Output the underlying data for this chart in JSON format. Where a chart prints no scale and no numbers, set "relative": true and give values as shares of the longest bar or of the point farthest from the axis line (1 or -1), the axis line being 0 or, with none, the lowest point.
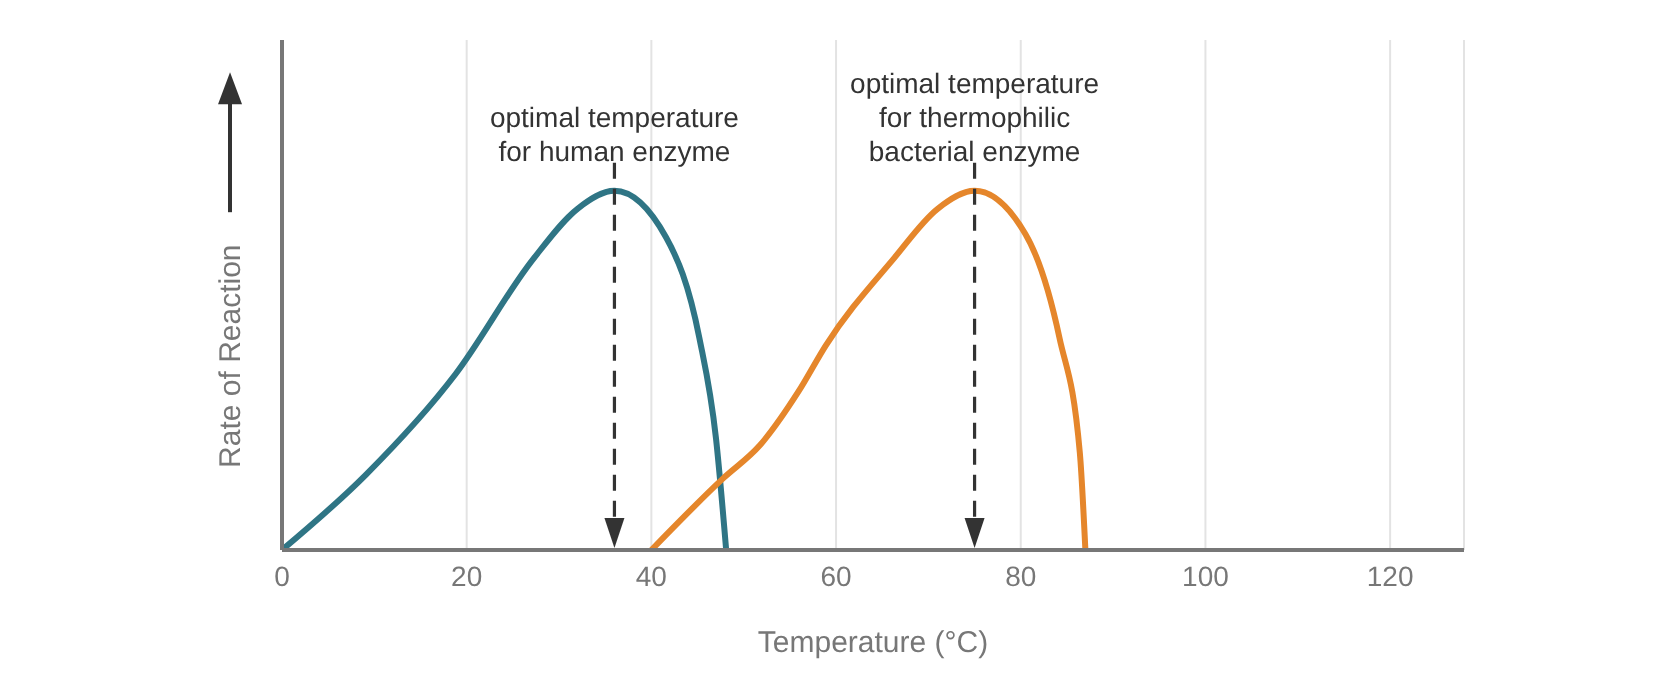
{
  "chart_data": {
    "type": "line",
    "xlabel": "Temperature (°C)",
    "ylabel": "Rate of Reaction",
    "relative": true,
    "xlim": [
      0,
      128
    ],
    "xticks": [
      0,
      20,
      40,
      60,
      80,
      100,
      120
    ],
    "grid": "x",
    "marker": "none",
    "line_style": "solid",
    "series": [
      {
        "color": "#2f7585",
        "x": [
          0,
          9.1,
          18.8,
          27.2,
          32,
          36,
          41.6,
          45.2,
          47,
          48.1
        ],
        "values": [
          0,
          0.21,
          0.49,
          0.81,
          0.95,
          1,
          0.87,
          0.59,
          0.31,
          0
        ]
      },
      {
        "color": "#e5862b",
        "x": [
          40,
          47.8,
          51.7,
          55.9,
          58.9,
          66.2,
          71,
          75,
          80.5,
          84.2,
          86.4,
          87
        ],
        "values": [
          0,
          0.2,
          0.29,
          0.44,
          0.57,
          0.81,
          0.95,
          1,
          0.88,
          0.59,
          0.27,
          0
        ]
      }
    ],
    "ref_lines": [
      {
        "axis": "x",
        "value": 36,
        "label": "optimal temperature\nfor human enzyme",
        "color": "#333333",
        "line_style": "dashed"
      },
      {
        "axis": "x",
        "value": 75,
        "label": "optimal temperature\nfor thermophilic\nbacterial enzyme",
        "color": "#333333",
        "line_style": "dashed"
      }
    ]
  }
}
